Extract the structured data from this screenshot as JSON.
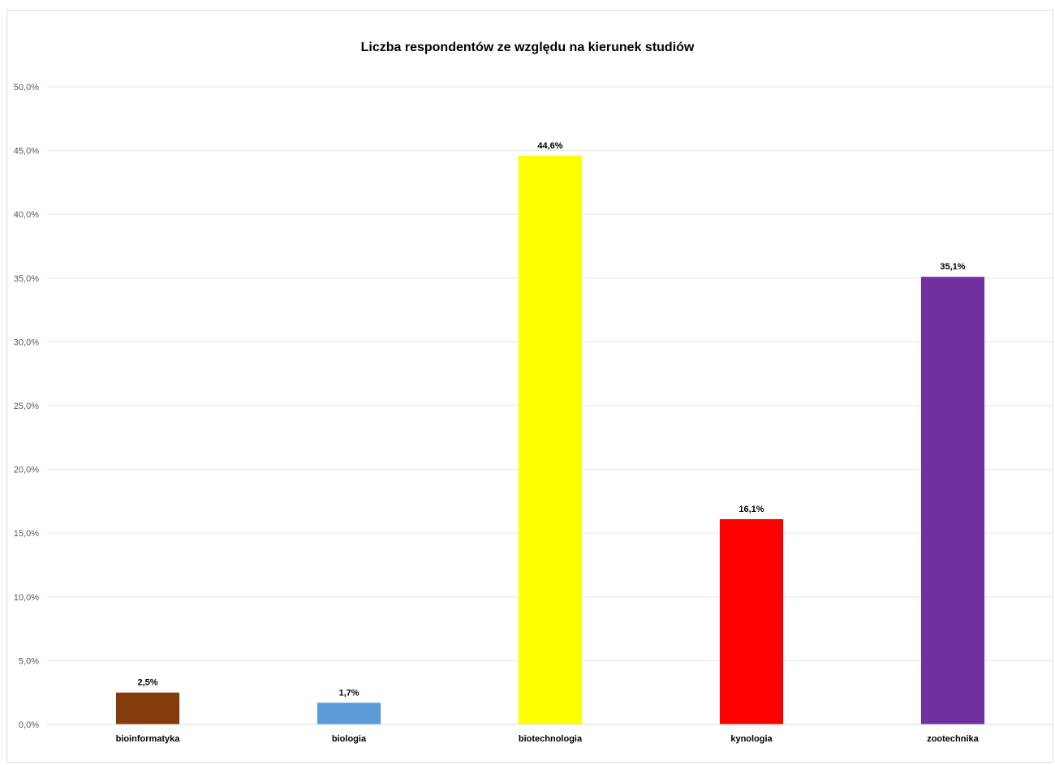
{
  "chart_data": {
    "type": "bar",
    "title": "Liczba respondentów ze względu na kierunek studiów",
    "xlabel": "",
    "ylabel": "",
    "categories": [
      "bioinformatyka",
      "biologia",
      "biotechnologia",
      "kynologia",
      "zootechnika"
    ],
    "values": [
      2.5,
      1.7,
      44.6,
      16.1,
      35.1
    ],
    "value_labels": [
      "2,5%",
      "1,7%",
      "44,6%",
      "16,1%",
      "35,1%"
    ],
    "colors": [
      "#843C0C",
      "#5B9BD5",
      "#FFFF00",
      "#FF0000",
      "#7030A0"
    ],
    "ylim": [
      0,
      50
    ],
    "yticks": [
      0,
      5,
      10,
      15,
      20,
      25,
      30,
      35,
      40,
      45,
      50
    ],
    "ytick_labels": [
      "0,0%",
      "5,0%",
      "10,0%",
      "15,0%",
      "20,0%",
      "25,0%",
      "30,0%",
      "35,0%",
      "40,0%",
      "45,0%",
      "50,0%"
    ],
    "grid": true,
    "legend": "none",
    "gridline_color": "#e6e6e6",
    "axis_color": "#d9d9d9",
    "text_color": "#000000",
    "tick_label_color": "#595959"
  }
}
